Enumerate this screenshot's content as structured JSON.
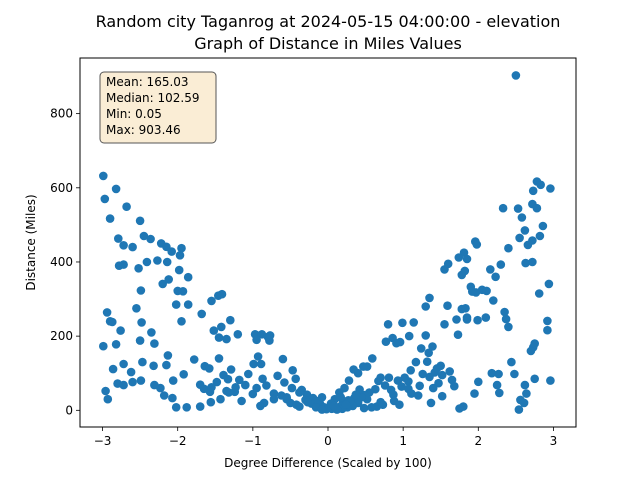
{
  "chart_data": {
    "type": "scatter",
    "title": [
      "Random city Taganrog at 2024-05-15 04:00:00  - elevation",
      "Graph of Distance in Miles Values"
    ],
    "xlabel": "Degree Difference (Scaled by 100)",
    "ylabel": "Distance (Miles)",
    "xlim": [
      -3.3,
      3.3
    ],
    "ylim": [
      -45,
      950
    ],
    "xticks": [
      -3,
      -2,
      -1,
      0,
      1,
      2,
      3
    ],
    "yticks": [
      0,
      200,
      400,
      600,
      800
    ],
    "marker_color": "#1f77b4",
    "stats_box": [
      "Mean: 165.03",
      "Median: 102.59",
      "Min: 0.05",
      "Max: 903.46"
    ],
    "stats_box_fill": "#f5deb3",
    "points": [
      [
        -2.99,
        632
      ],
      [
        -2.97,
        570
      ],
      [
        -2.9,
        517
      ],
      [
        -2.82,
        597
      ],
      [
        -2.68,
        549
      ],
      [
        -2.5,
        511
      ],
      [
        -2.79,
        463
      ],
      [
        -2.72,
        445
      ],
      [
        -2.45,
        470
      ],
      [
        -2.36,
        462
      ],
      [
        -2.22,
        450
      ],
      [
        -2.15,
        441
      ],
      [
        -2.08,
        428
      ],
      [
        -1.95,
        437
      ],
      [
        -1.97,
        418
      ],
      [
        -2.6,
        440
      ],
      [
        -2.78,
        390
      ],
      [
        -2.72,
        393
      ],
      [
        -2.52,
        383
      ],
      [
        -2.41,
        400
      ],
      [
        -2.27,
        404
      ],
      [
        -2.14,
        400
      ],
      [
        -2.12,
        353
      ],
      [
        -2.2,
        341
      ],
      [
        -1.98,
        378
      ],
      [
        -1.86,
        359
      ],
      [
        -2.0,
        322
      ],
      [
        -1.93,
        321
      ],
      [
        -2.49,
        323
      ],
      [
        -2.94,
        264
      ],
      [
        -2.9,
        240
      ],
      [
        -2.87,
        238
      ],
      [
        -2.55,
        275
      ],
      [
        -2.48,
        237
      ],
      [
        -2.02,
        285
      ],
      [
        -1.86,
        285
      ],
      [
        -1.95,
        240
      ],
      [
        -1.68,
        260
      ],
      [
        -1.55,
        295
      ],
      [
        -1.46,
        309
      ],
      [
        -1.41,
        313
      ],
      [
        -1.3,
        243
      ],
      [
        -1.42,
        225
      ],
      [
        -1.52,
        215
      ],
      [
        -1.45,
        196
      ],
      [
        -1.2,
        205
      ],
      [
        -1.35,
        192
      ],
      [
        -0.97,
        205
      ],
      [
        -0.88,
        205
      ],
      [
        -0.95,
        190
      ],
      [
        -0.78,
        188
      ],
      [
        -0.8,
        198
      ],
      [
        -0.77,
        202
      ],
      [
        -2.99,
        173
      ],
      [
        -2.82,
        178
      ],
      [
        -2.76,
        215
      ],
      [
        -2.5,
        188
      ],
      [
        -2.35,
        210
      ],
      [
        -2.31,
        180
      ],
      [
        -2.13,
        148
      ],
      [
        -2.15,
        122
      ],
      [
        -2.32,
        120
      ],
      [
        -2.47,
        130
      ],
      [
        -2.72,
        125
      ],
      [
        -2.86,
        111
      ],
      [
        -2.8,
        72
      ],
      [
        -2.72,
        68
      ],
      [
        -2.96,
        52
      ],
      [
        -2.93,
        30
      ],
      [
        -2.62,
        103
      ],
      [
        -2.6,
        76
      ],
      [
        -2.49,
        80
      ],
      [
        -2.31,
        68
      ],
      [
        -2.23,
        60
      ],
      [
        -2.06,
        80
      ],
      [
        -1.92,
        97
      ],
      [
        -1.78,
        137
      ],
      [
        -1.64,
        119
      ],
      [
        -1.58,
        113
      ],
      [
        -1.7,
        69
      ],
      [
        -1.65,
        58
      ],
      [
        -1.57,
        50
      ],
      [
        -1.48,
        76
      ],
      [
        -1.39,
        95
      ],
      [
        -1.29,
        110
      ],
      [
        -1.33,
        84
      ],
      [
        -1.24,
        50
      ],
      [
        -1.18,
        82
      ],
      [
        -1.06,
        98
      ],
      [
        -0.99,
        125
      ],
      [
        -0.93,
        145
      ],
      [
        -0.89,
        125
      ],
      [
        -0.87,
        85
      ],
      [
        -0.82,
        67
      ],
      [
        -0.67,
        93
      ],
      [
        -0.58,
        75
      ],
      [
        -0.55,
        35
      ],
      [
        -0.48,
        60
      ],
      [
        -0.43,
        85
      ],
      [
        -0.35,
        55
      ],
      [
        -0.28,
        42
      ],
      [
        -0.2,
        33
      ],
      [
        -0.1,
        15
      ],
      [
        -0.05,
        8
      ],
      [
        -2.18,
        40
      ],
      [
        -2.07,
        33
      ],
      [
        -2.02,
        8
      ],
      [
        -1.88,
        8
      ],
      [
        -1.7,
        10
      ],
      [
        -1.56,
        22
      ],
      [
        -1.43,
        30
      ],
      [
        -1.32,
        48
      ],
      [
        -1.23,
        62
      ],
      [
        -1.1,
        68
      ],
      [
        -1.0,
        44
      ],
      [
        -0.95,
        60
      ],
      [
        -0.85,
        20
      ],
      [
        -0.72,
        45
      ],
      [
        -0.62,
        40
      ],
      [
        -0.55,
        30
      ],
      [
        -0.5,
        20
      ],
      [
        -0.42,
        15
      ],
      [
        -0.38,
        10
      ],
      [
        -0.3,
        28
      ],
      [
        -0.22,
        18
      ],
      [
        -0.13,
        25
      ],
      [
        -0.08,
        35
      ],
      [
        -0.02,
        3
      ],
      [
        0.05,
        4
      ],
      [
        0.1,
        6
      ],
      [
        -1.55,
        62
      ],
      [
        -1.45,
        140
      ],
      [
        -1.35,
        52
      ],
      [
        -1.15,
        25
      ],
      [
        -0.9,
        12
      ],
      [
        -0.72,
        30
      ],
      [
        -0.6,
        138
      ],
      [
        -0.47,
        108
      ],
      [
        -0.38,
        48
      ],
      [
        -0.27,
        22
      ],
      [
        -0.16,
        8
      ],
      [
        -0.08,
        2
      ],
      [
        2.5,
        903
      ],
      [
        2.78,
        617
      ],
      [
        2.83,
        608
      ],
      [
        2.96,
        598
      ],
      [
        2.73,
        592
      ],
      [
        2.72,
        556
      ],
      [
        2.78,
        545
      ],
      [
        2.58,
        520
      ],
      [
        2.86,
        497
      ],
      [
        2.62,
        485
      ],
      [
        2.82,
        470
      ],
      [
        2.4,
        437
      ],
      [
        2.66,
        446
      ],
      [
        2.72,
        458
      ],
      [
        2.63,
        397
      ],
      [
        2.72,
        400
      ],
      [
        2.55,
        465
      ],
      [
        2.3,
        393
      ],
      [
        1.96,
        455
      ],
      [
        1.98,
        447
      ],
      [
        1.81,
        425
      ],
      [
        1.85,
        408
      ],
      [
        1.74,
        412
      ],
      [
        1.55,
        380
      ],
      [
        1.6,
        395
      ],
      [
        1.78,
        365
      ],
      [
        1.82,
        376
      ],
      [
        2.16,
        380
      ],
      [
        2.23,
        360
      ],
      [
        1.9,
        333
      ],
      [
        1.92,
        320
      ],
      [
        2.05,
        325
      ],
      [
        1.97,
        318
      ],
      [
        2.11,
        322
      ],
      [
        2.2,
        296
      ],
      [
        1.78,
        273
      ],
      [
        1.83,
        275
      ],
      [
        1.85,
        250
      ],
      [
        1.99,
        243
      ],
      [
        2.1,
        250
      ],
      [
        1.71,
        245
      ],
      [
        1.59,
        282
      ],
      [
        1.35,
        303
      ],
      [
        1.3,
        280
      ],
      [
        1.55,
        232
      ],
      [
        1.85,
        245
      ],
      [
        1.73,
        204
      ],
      [
        2.37,
        246
      ],
      [
        2.4,
        225
      ],
      [
        2.92,
        241
      ],
      [
        2.92,
        216
      ],
      [
        2.81,
        315
      ],
      [
        2.94,
        341
      ],
      [
        2.53,
        544
      ],
      [
        2.33,
        545
      ],
      [
        2.35,
        265
      ],
      [
        1.14,
        237
      ],
      [
        0.99,
        236
      ],
      [
        0.86,
        195
      ],
      [
        0.96,
        184
      ],
      [
        0.91,
        181
      ],
      [
        0.77,
        185
      ],
      [
        0.8,
        232
      ],
      [
        1.08,
        200
      ],
      [
        1.3,
        202
      ],
      [
        1.39,
        172
      ],
      [
        1.34,
        155
      ],
      [
        1.24,
        167
      ],
      [
        1.32,
        131
      ],
      [
        1.17,
        130
      ],
      [
        1.1,
        108
      ],
      [
        1.02,
        88
      ],
      [
        0.93,
        80
      ],
      [
        0.81,
        88
      ],
      [
        0.67,
        79
      ],
      [
        0.59,
        140
      ],
      [
        0.52,
        118
      ],
      [
        0.47,
        118
      ],
      [
        0.4,
        100
      ],
      [
        0.34,
        110
      ],
      [
        0.28,
        80
      ],
      [
        0.22,
        60
      ],
      [
        0.15,
        48
      ],
      [
        0.09,
        30
      ],
      [
        0.04,
        18
      ],
      [
        1.5,
        120
      ],
      [
        1.42,
        102
      ],
      [
        1.45,
        113
      ],
      [
        1.62,
        105
      ],
      [
        1.68,
        65
      ],
      [
        1.52,
        95
      ],
      [
        1.47,
        73
      ],
      [
        1.35,
        90
      ],
      [
        1.26,
        98
      ],
      [
        1.22,
        66
      ],
      [
        1.2,
        40
      ],
      [
        1.07,
        78
      ],
      [
        0.98,
        64
      ],
      [
        0.87,
        42
      ],
      [
        0.76,
        67
      ],
      [
        0.7,
        88
      ],
      [
        0.63,
        57
      ],
      [
        0.55,
        48
      ],
      [
        0.48,
        41
      ],
      [
        0.42,
        56
      ],
      [
        0.35,
        33
      ],
      [
        0.27,
        27
      ],
      [
        0.2,
        20
      ],
      [
        0.16,
        10
      ],
      [
        0.11,
        6
      ],
      [
        2.75,
        180
      ],
      [
        2.73,
        170
      ],
      [
        2.7,
        160
      ],
      [
        2.75,
        85
      ],
      [
        2.96,
        80
      ],
      [
        2.48,
        98
      ],
      [
        2.62,
        68
      ],
      [
        2.56,
        28
      ],
      [
        2.64,
        45
      ],
      [
        2.61,
        20
      ],
      [
        2.54,
        2
      ],
      [
        2.27,
        98
      ],
      [
        2.18,
        100
      ],
      [
        2.28,
        47
      ],
      [
        2.25,
        68
      ],
      [
        1.95,
        45
      ],
      [
        1.8,
        10
      ],
      [
        1.75,
        5
      ],
      [
        1.52,
        38
      ],
      [
        1.37,
        20
      ],
      [
        1.07,
        58
      ],
      [
        0.95,
        15
      ],
      [
        0.88,
        25
      ],
      [
        0.73,
        15
      ],
      [
        0.65,
        10
      ],
      [
        0.58,
        8
      ],
      [
        0.48,
        6
      ],
      [
        0.4,
        20
      ],
      [
        0.33,
        12
      ],
      [
        0.26,
        8
      ],
      [
        0.19,
        4
      ],
      [
        0.12,
        2
      ],
      [
        2.44,
        130
      ],
      [
        2.0,
        77
      ],
      [
        1.65,
        82
      ],
      [
        1.4,
        60
      ],
      [
        1.11,
        45
      ],
      [
        0.84,
        55
      ],
      [
        0.7,
        22
      ],
      [
        0.52,
        30
      ],
      [
        0.44,
        35
      ],
      [
        0.37,
        42
      ],
      [
        0.3,
        25
      ],
      [
        0.24,
        15
      ],
      [
        0.17,
        35
      ],
      [
        0.08,
        12
      ]
    ]
  }
}
